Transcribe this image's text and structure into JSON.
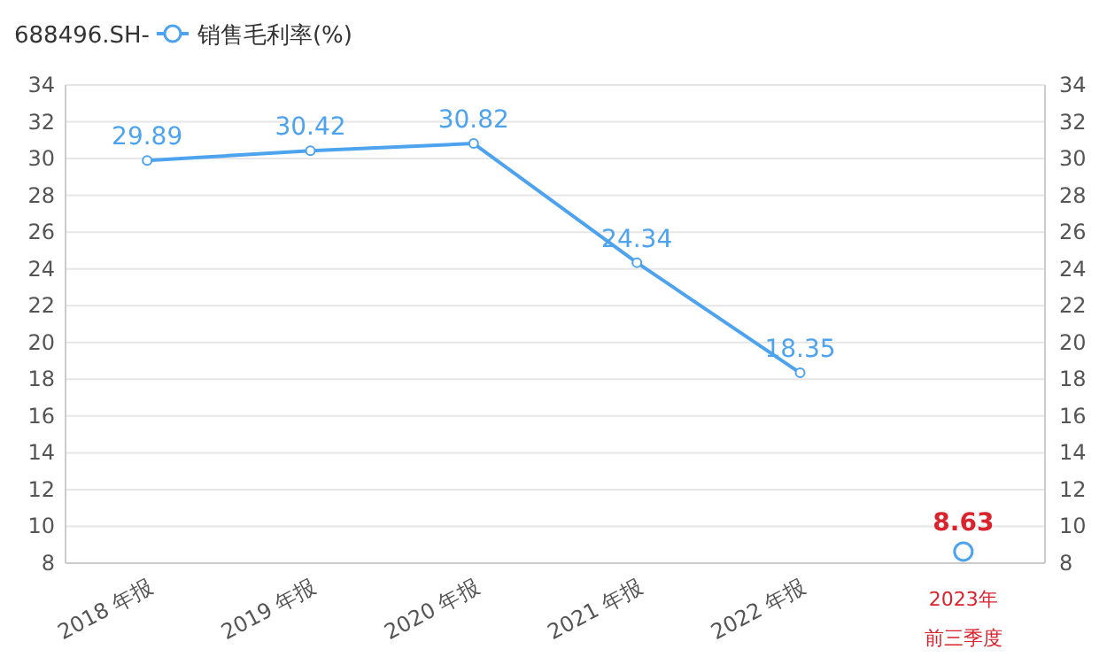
{
  "chart_data": {
    "type": "line",
    "title": "688496.SH-",
    "categories": [
      "2018 年报",
      "2019 年报",
      "2020 年报",
      "2021 年报",
      "2022 年报",
      "2023年前三季度"
    ],
    "series": [
      {
        "name": "销售毛利率(%)",
        "color": "#4da3ee",
        "values": [
          29.89,
          30.42,
          30.82,
          24.34,
          18.35,
          null
        ]
      },
      {
        "type": "scatter",
        "color": "#4da3ee",
        "values": [
          null,
          null,
          null,
          null,
          null,
          8.63
        ]
      }
    ],
    "ylim": [
      8,
      34
    ],
    "yticks": [
      8,
      10,
      12,
      14,
      16,
      18,
      20,
      22,
      24,
      26,
      28,
      30,
      32,
      34
    ],
    "y2lim": [
      8,
      34
    ],
    "y2ticks": [
      8,
      10,
      12,
      14,
      16,
      18,
      20,
      22,
      24,
      26,
      28,
      30,
      32,
      34
    ],
    "grid": "y",
    "legend": "top left",
    "marker": "circle",
    "data_labels": true
  }
}
